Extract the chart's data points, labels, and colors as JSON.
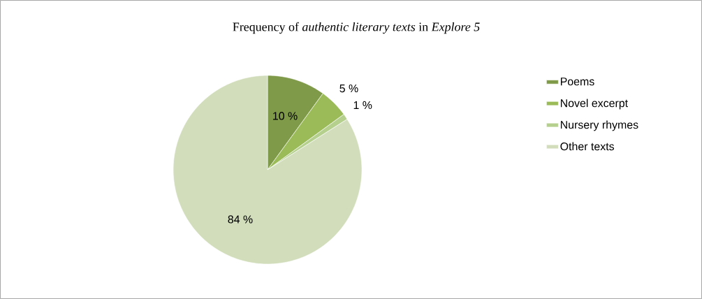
{
  "chart_data": {
    "type": "pie",
    "title": "Frequency of *authentic literary texts* in *Explore 5*",
    "categories": [
      "Poems",
      "Novel excerpt",
      "Nursery rhymes",
      "Other texts"
    ],
    "values": [
      10,
      5,
      1,
      84
    ],
    "colors": [
      "#7f9a48",
      "#9bbb59",
      "#b5cf8d",
      "#d1ddbb"
    ],
    "value_labels": [
      "10 %",
      "5 %",
      "1 %",
      "84 %"
    ],
    "legend": "right"
  }
}
